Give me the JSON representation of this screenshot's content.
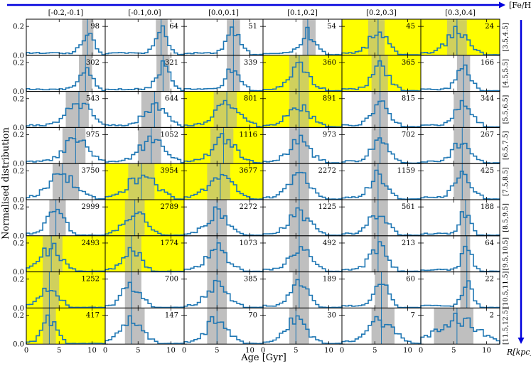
{
  "chart_data": {
    "type": "histogram-grid",
    "title": "",
    "xlabel": "Age [Gyr]",
    "ylabel": "Normalised distribution",
    "column_axis_label": "[Fe/H]",
    "row_axis_label": "R[kpc]",
    "xlim": [
      0,
      12
    ],
    "ylim": [
      0,
      0.25
    ],
    "x_ticks": [
      0,
      5,
      10
    ],
    "y_ticks": [
      0.0,
      0.2
    ],
    "x_tick_labels": [
      "0",
      "5",
      "10"
    ],
    "y_tick_labels": [
      "0.0",
      "0.2"
    ],
    "columns": [
      "[-0.2,-0.1]",
      "[-0.1,0.0]",
      "[0.0,0.1]",
      "[0.1,0.2]",
      "[0.2,0.3]",
      "[0.3,0.4]"
    ],
    "rows": [
      "[3.5,4.5]",
      "[4.5,5.5]",
      "[5.5,6.5]",
      "[6.5,7.5]",
      "[7.5,8.5]",
      "[8.5,9.5]",
      "[9.5,10.5]",
      "[10.5,11.5]",
      "[11.5,12.5]"
    ],
    "colors": {
      "line": "#1f77b4",
      "band": "#a9a9a9",
      "highlight": "#ffff00",
      "arrow": "#0000dd"
    },
    "panels": [
      [
        {
          "n": "98",
          "median": 9.3,
          "lo": 8.5,
          "hi": 10.2,
          "highlight": false
        },
        {
          "n": "64",
          "median": 8.5,
          "lo": 7.7,
          "hi": 9.5,
          "highlight": false
        },
        {
          "n": "51",
          "median": 7.5,
          "lo": 6.5,
          "hi": 8.5,
          "highlight": false
        },
        {
          "n": "54",
          "median": 6.8,
          "lo": 6.0,
          "hi": 8.0,
          "highlight": false
        },
        {
          "n": "45",
          "median": 5.5,
          "lo": 4.0,
          "hi": 6.5,
          "highlight": true
        },
        {
          "n": "24",
          "median": 5.5,
          "lo": 4.0,
          "hi": 7.0,
          "highlight": true
        }
      ],
      [
        {
          "n": "302",
          "median": 9.0,
          "lo": 8.0,
          "hi": 10.0,
          "highlight": false
        },
        {
          "n": "321",
          "median": 8.8,
          "lo": 7.8,
          "hi": 9.8,
          "highlight": false
        },
        {
          "n": "339",
          "median": 7.5,
          "lo": 6.5,
          "hi": 8.5,
          "highlight": false
        },
        {
          "n": "360",
          "median": 5.5,
          "lo": 4.0,
          "hi": 7.0,
          "highlight": true
        },
        {
          "n": "365",
          "median": 5.8,
          "lo": 4.5,
          "hi": 7.0,
          "highlight": true
        },
        {
          "n": "166",
          "median": 6.5,
          "lo": 5.5,
          "hi": 7.5,
          "highlight": false
        }
      ],
      [
        {
          "n": "543",
          "median": 8.0,
          "lo": 6.0,
          "hi": 9.5,
          "highlight": false
        },
        {
          "n": "644",
          "median": 7.5,
          "lo": 5.5,
          "hi": 8.5,
          "highlight": false
        },
        {
          "n": "801",
          "median": 6.5,
          "lo": 4.5,
          "hi": 8.0,
          "highlight": true
        },
        {
          "n": "891",
          "median": 5.5,
          "lo": 4.0,
          "hi": 7.0,
          "highlight": true
        },
        {
          "n": "815",
          "median": 5.8,
          "lo": 4.5,
          "hi": 7.0,
          "highlight": false
        },
        {
          "n": "344",
          "median": 6.5,
          "lo": 5.0,
          "hi": 7.5,
          "highlight": false
        }
      ],
      [
        {
          "n": "975",
          "median": 7.5,
          "lo": 5.5,
          "hi": 9.0,
          "highlight": false
        },
        {
          "n": "1052",
          "median": 7.0,
          "lo": 5.0,
          "hi": 8.5,
          "highlight": false
        },
        {
          "n": "1116",
          "median": 6.0,
          "lo": 4.0,
          "hi": 7.5,
          "highlight": true
        },
        {
          "n": "973",
          "median": 5.5,
          "lo": 4.0,
          "hi": 7.0,
          "highlight": false
        },
        {
          "n": "702",
          "median": 5.8,
          "lo": 4.5,
          "hi": 7.0,
          "highlight": false
        },
        {
          "n": "267",
          "median": 6.3,
          "lo": 5.0,
          "hi": 7.5,
          "highlight": false
        }
      ],
      [
        {
          "n": "3750",
          "median": 5.5,
          "lo": 4.0,
          "hi": 8.0,
          "highlight": false
        },
        {
          "n": "3954",
          "median": 5.5,
          "lo": 3.5,
          "hi": 7.5,
          "highlight": true
        },
        {
          "n": "3677",
          "median": 5.5,
          "lo": 3.5,
          "hi": 7.0,
          "highlight": true
        },
        {
          "n": "2272",
          "median": 5.5,
          "lo": 4.0,
          "hi": 7.0,
          "highlight": false
        },
        {
          "n": "1159",
          "median": 5.5,
          "lo": 4.5,
          "hi": 7.0,
          "highlight": false
        },
        {
          "n": "425",
          "median": 6.3,
          "lo": 5.0,
          "hi": 7.5,
          "highlight": false
        }
      ],
      [
        {
          "n": "2999",
          "median": 4.5,
          "lo": 3.5,
          "hi": 6.0,
          "highlight": false
        },
        {
          "n": "2789",
          "median": 4.5,
          "lo": 3.0,
          "hi": 6.0,
          "highlight": true
        },
        {
          "n": "2272",
          "median": 5.0,
          "lo": 3.5,
          "hi": 6.5,
          "highlight": false
        },
        {
          "n": "1225",
          "median": 5.5,
          "lo": 4.0,
          "hi": 7.0,
          "highlight": false
        },
        {
          "n": "561",
          "median": 5.5,
          "lo": 4.5,
          "hi": 7.0,
          "highlight": false
        },
        {
          "n": "188",
          "median": 6.8,
          "lo": 6.0,
          "hi": 7.5,
          "highlight": false
        }
      ],
      [
        {
          "n": "2493",
          "median": 3.8,
          "lo": 2.5,
          "hi": 5.5,
          "highlight": true
        },
        {
          "n": "1774",
          "median": 4.0,
          "lo": 3.0,
          "hi": 5.5,
          "highlight": true
        },
        {
          "n": "1073",
          "median": 5.0,
          "lo": 3.5,
          "hi": 6.5,
          "highlight": false
        },
        {
          "n": "492",
          "median": 5.5,
          "lo": 4.0,
          "hi": 7.0,
          "highlight": false
        },
        {
          "n": "213",
          "median": 5.5,
          "lo": 4.5,
          "hi": 7.0,
          "highlight": false
        },
        {
          "n": "64",
          "median": 7.0,
          "lo": 6.0,
          "hi": 7.5,
          "highlight": false
        }
      ],
      [
        {
          "n": "1252",
          "median": 3.5,
          "lo": 2.5,
          "hi": 5.0,
          "highlight": true
        },
        {
          "n": "700",
          "median": 4.0,
          "lo": 3.0,
          "hi": 5.5,
          "highlight": false
        },
        {
          "n": "385",
          "median": 5.0,
          "lo": 3.5,
          "hi": 6.5,
          "highlight": false
        },
        {
          "n": "189",
          "median": 5.5,
          "lo": 4.5,
          "hi": 7.0,
          "highlight": false
        },
        {
          "n": "60",
          "median": 6.0,
          "lo": 5.0,
          "hi": 7.0,
          "highlight": false
        },
        {
          "n": "22",
          "median": 7.0,
          "lo": 6.0,
          "hi": 7.5,
          "highlight": false
        }
      ],
      [
        {
          "n": "417",
          "median": 3.5,
          "lo": 2.5,
          "hi": 4.5,
          "highlight": true
        },
        {
          "n": "147",
          "median": 4.0,
          "lo": 3.0,
          "hi": 6.0,
          "highlight": false
        },
        {
          "n": "70",
          "median": 5.0,
          "lo": 3.5,
          "hi": 6.5,
          "highlight": false
        },
        {
          "n": "30",
          "median": 5.0,
          "lo": 4.0,
          "hi": 7.0,
          "highlight": false
        },
        {
          "n": "7",
          "median": 6.0,
          "lo": 4.5,
          "hi": 8.0,
          "highlight": false
        },
        {
          "n": "2",
          "median": 5.5,
          "lo": 2.0,
          "hi": 8.0,
          "highlight": false
        }
      ]
    ]
  }
}
